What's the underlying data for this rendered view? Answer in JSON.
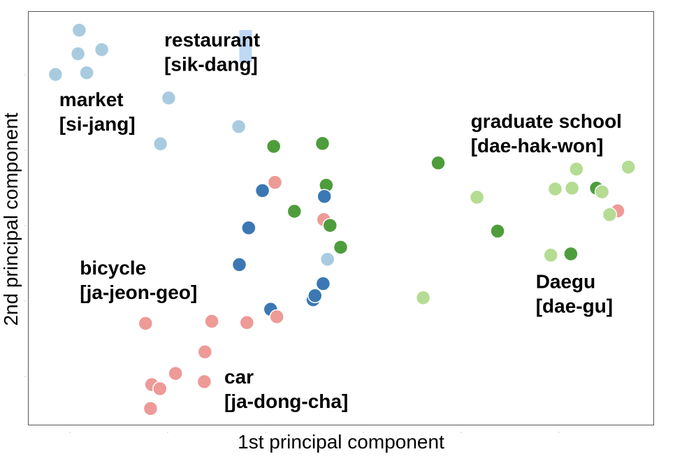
{
  "chart_data": {
    "type": "scatter",
    "title": "",
    "xlabel": "1st principal component",
    "ylabel": "2nd principal component",
    "xlim": [
      0,
      100
    ],
    "ylim": [
      0,
      100
    ],
    "grid": false,
    "colors": {
      "light_blue": "#a9cbe0",
      "dark_blue": "#3b78b3",
      "pink": "#ee9a97",
      "dark_green": "#4e9d3c",
      "light_green": "#b5dc93",
      "highlight": "#bfd8f4"
    },
    "cluster_labels": [
      {
        "id": "restaurant",
        "lines": [
          "restaurant",
          "[sik-dang]"
        ],
        "x": 21.8,
        "y": 91.5
      },
      {
        "id": "market",
        "lines": [
          "market",
          "[si-jang]"
        ],
        "x": 5.0,
        "y": 77.0
      },
      {
        "id": "graduate-school",
        "lines": [
          "graduate school",
          "[dae-hak-won]"
        ],
        "x": 70.8,
        "y": 71.8
      },
      {
        "id": "bicycle",
        "lines": [
          "bicycle",
          "[ja-jeon-geo]"
        ],
        "x": 8.3,
        "y": 36.3
      },
      {
        "id": "daegu",
        "lines": [
          "Daegu",
          "[dae-gu]"
        ],
        "x": 81.2,
        "y": 33.0
      },
      {
        "id": "car",
        "lines": [
          "car",
          "[ja-dong-cha]"
        ],
        "x": 31.4,
        "y": 10.0
      }
    ],
    "highlight_marker": {
      "x": 34.8,
      "y": 91.4
    },
    "points": [
      {
        "x": 8.2,
        "y": 95.4,
        "c": "light_blue"
      },
      {
        "x": 11.8,
        "y": 90.7,
        "c": "light_blue"
      },
      {
        "x": 8.0,
        "y": 89.7,
        "c": "light_blue"
      },
      {
        "x": 9.4,
        "y": 85.1,
        "c": "light_blue"
      },
      {
        "x": 4.4,
        "y": 84.7,
        "c": "light_blue"
      },
      {
        "x": 22.5,
        "y": 79.0,
        "c": "light_blue"
      },
      {
        "x": 33.7,
        "y": 72.1,
        "c": "light_blue"
      },
      {
        "x": 21.2,
        "y": 67.9,
        "c": "light_blue"
      },
      {
        "x": 47.1,
        "y": 68.0,
        "c": "dark_green"
      },
      {
        "x": 39.3,
        "y": 67.3,
        "c": "dark_green"
      },
      {
        "x": 65.6,
        "y": 63.3,
        "c": "dark_green"
      },
      {
        "x": 39.5,
        "y": 58.6,
        "c": "pink"
      },
      {
        "x": 37.5,
        "y": 56.6,
        "c": "dark_blue"
      },
      {
        "x": 47.7,
        "y": 57.9,
        "c": "dark_green"
      },
      {
        "x": 47.4,
        "y": 55.2,
        "c": "dark_blue"
      },
      {
        "x": 42.6,
        "y": 51.6,
        "c": "dark_green"
      },
      {
        "x": 47.3,
        "y": 49.6,
        "c": "pink"
      },
      {
        "x": 48.3,
        "y": 48.2,
        "c": "dark_green"
      },
      {
        "x": 35.3,
        "y": 47.6,
        "c": "dark_blue"
      },
      {
        "x": 50.0,
        "y": 42.9,
        "c": "dark_green"
      },
      {
        "x": 47.9,
        "y": 40.0,
        "c": "light_blue"
      },
      {
        "x": 33.8,
        "y": 38.7,
        "c": "dark_blue"
      },
      {
        "x": 47.2,
        "y": 34.1,
        "c": "dark_blue"
      },
      {
        "x": 45.6,
        "y": 30.2,
        "c": "dark_blue"
      },
      {
        "x": 45.9,
        "y": 31.2,
        "c": "dark_blue"
      },
      {
        "x": 38.8,
        "y": 27.9,
        "c": "dark_blue"
      },
      {
        "x": 39.8,
        "y": 26.1,
        "c": "pink"
      },
      {
        "x": 29.4,
        "y": 25.0,
        "c": "pink"
      },
      {
        "x": 35.0,
        "y": 24.7,
        "c": "pink"
      },
      {
        "x": 18.8,
        "y": 24.5,
        "c": "pink"
      },
      {
        "x": 28.3,
        "y": 17.6,
        "c": "pink"
      },
      {
        "x": 23.6,
        "y": 12.4,
        "c": "pink"
      },
      {
        "x": 28.2,
        "y": 10.4,
        "c": "pink"
      },
      {
        "x": 19.8,
        "y": 9.7,
        "c": "pink"
      },
      {
        "x": 21.1,
        "y": 8.7,
        "c": "pink"
      },
      {
        "x": 19.6,
        "y": 3.9,
        "c": "pink"
      },
      {
        "x": 87.7,
        "y": 61.8,
        "c": "light_green"
      },
      {
        "x": 96.0,
        "y": 62.3,
        "c": "light_green"
      },
      {
        "x": 71.8,
        "y": 55.0,
        "c": "light_green"
      },
      {
        "x": 84.3,
        "y": 57.0,
        "c": "light_green"
      },
      {
        "x": 87.0,
        "y": 57.2,
        "c": "light_green"
      },
      {
        "x": 90.9,
        "y": 57.2,
        "c": "dark_green"
      },
      {
        "x": 91.8,
        "y": 56.3,
        "c": "light_green"
      },
      {
        "x": 94.3,
        "y": 51.7,
        "c": "pink"
      },
      {
        "x": 93.0,
        "y": 50.8,
        "c": "light_green"
      },
      {
        "x": 75.1,
        "y": 46.8,
        "c": "dark_green"
      },
      {
        "x": 83.6,
        "y": 41.0,
        "c": "light_green"
      },
      {
        "x": 86.8,
        "y": 41.3,
        "c": "dark_green"
      },
      {
        "x": 63.2,
        "y": 30.7,
        "c": "light_green"
      }
    ]
  }
}
